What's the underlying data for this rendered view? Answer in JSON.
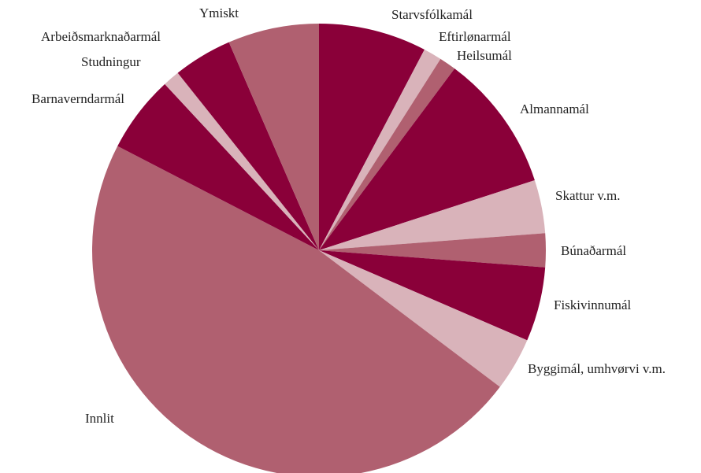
{
  "chart_data": {
    "type": "pie",
    "categories": [
      "Starvsfólkamál",
      "Eftirlønarmál",
      "Heilsumál",
      "Almannamál",
      "Skattur v.m.",
      "Búnaðarmál",
      "Fiskivinnumál",
      "Byggimál, umhvørvi v.m.",
      "Innlit",
      "Barnaverndarmál",
      "Studningur",
      "Arbeiðsmarknaðarmál",
      "Ymiskt"
    ],
    "values": [
      7.7,
      1.3,
      1.2,
      9.8,
      3.8,
      2.4,
      5.3,
      3.8,
      47.3,
      5.5,
      1.2,
      4.2,
      6.5
    ],
    "colors": [
      "#8a0039",
      "#d9b3ba",
      "#b06070",
      "#8a0039",
      "#d9b3ba",
      "#b06070",
      "#8a0039",
      "#d9b3ba",
      "#b06070",
      "#8a0039",
      "#d9b3ba",
      "#8a0039",
      "#b06070"
    ]
  }
}
